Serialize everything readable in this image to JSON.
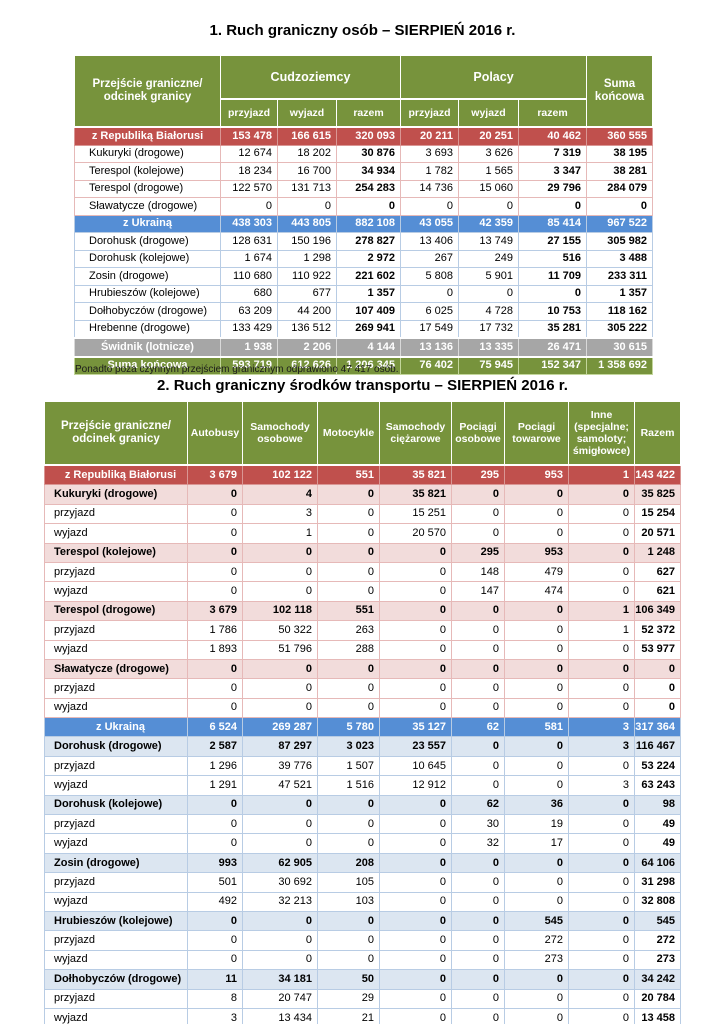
{
  "page": {
    "title1": "1. Ruch graniczny osób – SIERPIEŃ 2016 r.",
    "title2": "2. Ruch graniczny środków transportu – SIERPIEŃ 2016 r.",
    "footnote": "Ponadto poza czynnym przejściem granicznym odprawiono 47 417 osób."
  },
  "colors": {
    "header_green": "#77933C",
    "band_red": "#C0504D",
    "band_blue": "#558ED5",
    "band_gray": "#A6A6A6",
    "light_pink": "#F2DCDB",
    "light_blue": "#DCE6F1",
    "border_pink": "#E6B9B8",
    "border_blue": "#B8CCE4"
  },
  "table1": {
    "header": {
      "label": "Przejście graniczne/\nodcinek granicy",
      "group_foreigners": "Cudzoziemcy",
      "group_poles": "Polacy",
      "total": "Suma\nkońcowa",
      "sub": [
        "przyjazd",
        "wyjazd",
        "razem",
        "przyjazd",
        "wyjazd",
        "razem"
      ]
    },
    "rows": [
      {
        "label": "z Republiką Białorusi",
        "type": "band-red",
        "values": [
          "153 478",
          "166 615",
          "320 093",
          "20 211",
          "20 251",
          "40 462",
          "360 555"
        ]
      },
      {
        "label": "Kukuryki (drogowe)",
        "type": "row-pink",
        "values": [
          "12 674",
          "18 202",
          "30 876",
          "3 693",
          "3 626",
          "7 319",
          "38 195"
        ]
      },
      {
        "label": "Terespol (kolejowe)",
        "type": "row-pink",
        "values": [
          "18 234",
          "16 700",
          "34 934",
          "1 782",
          "1 565",
          "3 347",
          "38 281"
        ]
      },
      {
        "label": "Terespol (drogowe)",
        "type": "row-pink",
        "values": [
          "122 570",
          "131 713",
          "254 283",
          "14 736",
          "15 060",
          "29 796",
          "284 079"
        ]
      },
      {
        "label": "Sławatycze (drogowe)",
        "type": "row-pink",
        "values": [
          "0",
          "0",
          "0",
          "0",
          "0",
          "0",
          "0"
        ]
      },
      {
        "label": "z Ukrainą",
        "type": "band-blue",
        "values": [
          "438 303",
          "443 805",
          "882 108",
          "43 055",
          "42 359",
          "85 414",
          "967 522"
        ]
      },
      {
        "label": "Dorohusk (drogowe)",
        "type": "row-blue",
        "values": [
          "128 631",
          "150 196",
          "278 827",
          "13 406",
          "13 749",
          "27 155",
          "305 982"
        ]
      },
      {
        "label": "Dorohusk (kolejowe)",
        "type": "row-blue",
        "values": [
          "1 674",
          "1 298",
          "2 972",
          "267",
          "249",
          "516",
          "3 488"
        ]
      },
      {
        "label": "Zosin (drogowe)",
        "type": "row-blue",
        "values": [
          "110 680",
          "110 922",
          "221 602",
          "5 808",
          "5 901",
          "11 709",
          "233 311"
        ]
      },
      {
        "label": "Hrubieszów (kolejowe)",
        "type": "row-blue",
        "values": [
          "680",
          "677",
          "1 357",
          "0",
          "0",
          "0",
          "1 357"
        ]
      },
      {
        "label": "Dołhobyczów (drogowe)",
        "type": "row-blue",
        "values": [
          "63 209",
          "44 200",
          "107 409",
          "6 025",
          "4 728",
          "10 753",
          "118 162"
        ]
      },
      {
        "label": "Hrebenne (drogowe)",
        "type": "row-blue",
        "values": [
          "133 429",
          "136 512",
          "269 941",
          "17 549",
          "17 732",
          "35 281",
          "305 222"
        ]
      },
      {
        "label": "Świdnik (lotnicze)",
        "type": "band-gray",
        "values": [
          "1 938",
          "2 206",
          "4 144",
          "13 136",
          "13 335",
          "26 471",
          "30 615"
        ]
      },
      {
        "label": "Suma końcowa",
        "type": "band-green",
        "values": [
          "593 719",
          "612 626",
          "1 206 345",
          "76 402",
          "75 945",
          "152 347",
          "1 358 692"
        ]
      }
    ]
  },
  "table2": {
    "header": {
      "label": "Przejście graniczne/\nodcinek granicy",
      "cols": [
        "Autobusy",
        "Samochody\nosobowe",
        "Motocykle",
        "Samochody\nciężarowe",
        "Pociągi\nosobowe",
        "Pociągi\ntowarowe",
        "Inne\n(specjalne;\nsamoloty;\nśmigłowce)",
        "Razem"
      ]
    },
    "rows": [
      {
        "label": "z Republiką Białorusi",
        "type": "band-red",
        "values": [
          "3 679",
          "102 122",
          "551",
          "35 821",
          "295",
          "953",
          "1",
          "143 422"
        ]
      },
      {
        "label": "Kukuryki (drogowe)",
        "type": "group-pink",
        "values": [
          "0",
          "4",
          "0",
          "35 821",
          "0",
          "0",
          "0",
          "35 825"
        ]
      },
      {
        "label": "przyjazd",
        "type": "sub-pink",
        "values": [
          "0",
          "3",
          "0",
          "15 251",
          "0",
          "0",
          "0",
          "15 254"
        ]
      },
      {
        "label": "wyjazd",
        "type": "sub-pink",
        "values": [
          "0",
          "1",
          "0",
          "20 570",
          "0",
          "0",
          "0",
          "20 571"
        ]
      },
      {
        "label": "Terespol (kolejowe)",
        "type": "group-pink",
        "values": [
          "0",
          "0",
          "0",
          "0",
          "295",
          "953",
          "0",
          "1 248"
        ]
      },
      {
        "label": "przyjazd",
        "type": "sub-pink",
        "values": [
          "0",
          "0",
          "0",
          "0",
          "148",
          "479",
          "0",
          "627"
        ]
      },
      {
        "label": "wyjazd",
        "type": "sub-pink",
        "values": [
          "0",
          "0",
          "0",
          "0",
          "147",
          "474",
          "0",
          "621"
        ]
      },
      {
        "label": "Terespol (drogowe)",
        "type": "group-pink",
        "values": [
          "3 679",
          "102 118",
          "551",
          "0",
          "0",
          "0",
          "1",
          "106 349"
        ]
      },
      {
        "label": "przyjazd",
        "type": "sub-pink",
        "values": [
          "1 786",
          "50 322",
          "263",
          "0",
          "0",
          "0",
          "1",
          "52 372"
        ]
      },
      {
        "label": "wyjazd",
        "type": "sub-pink",
        "values": [
          "1 893",
          "51 796",
          "288",
          "0",
          "0",
          "0",
          "0",
          "53 977"
        ]
      },
      {
        "label": "Sławatycze (drogowe)",
        "type": "group-pink",
        "values": [
          "0",
          "0",
          "0",
          "0",
          "0",
          "0",
          "0",
          "0"
        ]
      },
      {
        "label": "przyjazd",
        "type": "sub-pink",
        "values": [
          "0",
          "0",
          "0",
          "0",
          "0",
          "0",
          "0",
          "0"
        ]
      },
      {
        "label": "wyjazd",
        "type": "sub-pink",
        "values": [
          "0",
          "0",
          "0",
          "0",
          "0",
          "0",
          "0",
          "0"
        ]
      },
      {
        "label": "z Ukrainą",
        "type": "band-blue",
        "values": [
          "6 524",
          "269 287",
          "5 780",
          "35 127",
          "62",
          "581",
          "3",
          "317 364"
        ]
      },
      {
        "label": "Dorohusk (drogowe)",
        "type": "group-blue",
        "values": [
          "2 587",
          "87 297",
          "3 023",
          "23 557",
          "0",
          "0",
          "3",
          "116 467"
        ]
      },
      {
        "label": "przyjazd",
        "type": "sub-blue",
        "values": [
          "1 296",
          "39 776",
          "1 507",
          "10 645",
          "0",
          "0",
          "0",
          "53 224"
        ]
      },
      {
        "label": "wyjazd",
        "type": "sub-blue",
        "values": [
          "1 291",
          "47 521",
          "1 516",
          "12 912",
          "0",
          "0",
          "3",
          "63 243"
        ]
      },
      {
        "label": "Dorohusk (kolejowe)",
        "type": "group-blue",
        "values": [
          "0",
          "0",
          "0",
          "0",
          "62",
          "36",
          "0",
          "98"
        ]
      },
      {
        "label": "przyjazd",
        "type": "sub-blue",
        "values": [
          "0",
          "0",
          "0",
          "0",
          "30",
          "19",
          "0",
          "49"
        ]
      },
      {
        "label": "wyjazd",
        "type": "sub-blue",
        "values": [
          "0",
          "0",
          "0",
          "0",
          "32",
          "17",
          "0",
          "49"
        ]
      },
      {
        "label": "Zosin (drogowe)",
        "type": "group-blue",
        "values": [
          "993",
          "62 905",
          "208",
          "0",
          "0",
          "0",
          "0",
          "64 106"
        ]
      },
      {
        "label": "przyjazd",
        "type": "sub-blue",
        "values": [
          "501",
          "30 692",
          "105",
          "0",
          "0",
          "0",
          "0",
          "31 298"
        ]
      },
      {
        "label": "wyjazd",
        "type": "sub-blue",
        "values": [
          "492",
          "32 213",
          "103",
          "0",
          "0",
          "0",
          "0",
          "32 808"
        ]
      },
      {
        "label": "Hrubieszów (kolejowe)",
        "type": "group-blue",
        "values": [
          "0",
          "0",
          "0",
          "0",
          "0",
          "545",
          "0",
          "545"
        ]
      },
      {
        "label": "przyjazd",
        "type": "sub-blue",
        "values": [
          "0",
          "0",
          "0",
          "0",
          "0",
          "272",
          "0",
          "272"
        ]
      },
      {
        "label": "wyjazd",
        "type": "sub-blue",
        "values": [
          "0",
          "0",
          "0",
          "0",
          "0",
          "273",
          "0",
          "273"
        ]
      },
      {
        "label": "Dołhobyczów (drogowe)",
        "type": "group-blue",
        "values": [
          "11",
          "34 181",
          "50",
          "0",
          "0",
          "0",
          "0",
          "34 242"
        ]
      },
      {
        "label": "przyjazd",
        "type": "sub-blue",
        "values": [
          "8",
          "20 747",
          "29",
          "0",
          "0",
          "0",
          "0",
          "20 784"
        ]
      },
      {
        "label": "wyjazd",
        "type": "sub-blue",
        "values": [
          "3",
          "13 434",
          "21",
          "0",
          "0",
          "0",
          "0",
          "13 458"
        ]
      }
    ]
  }
}
